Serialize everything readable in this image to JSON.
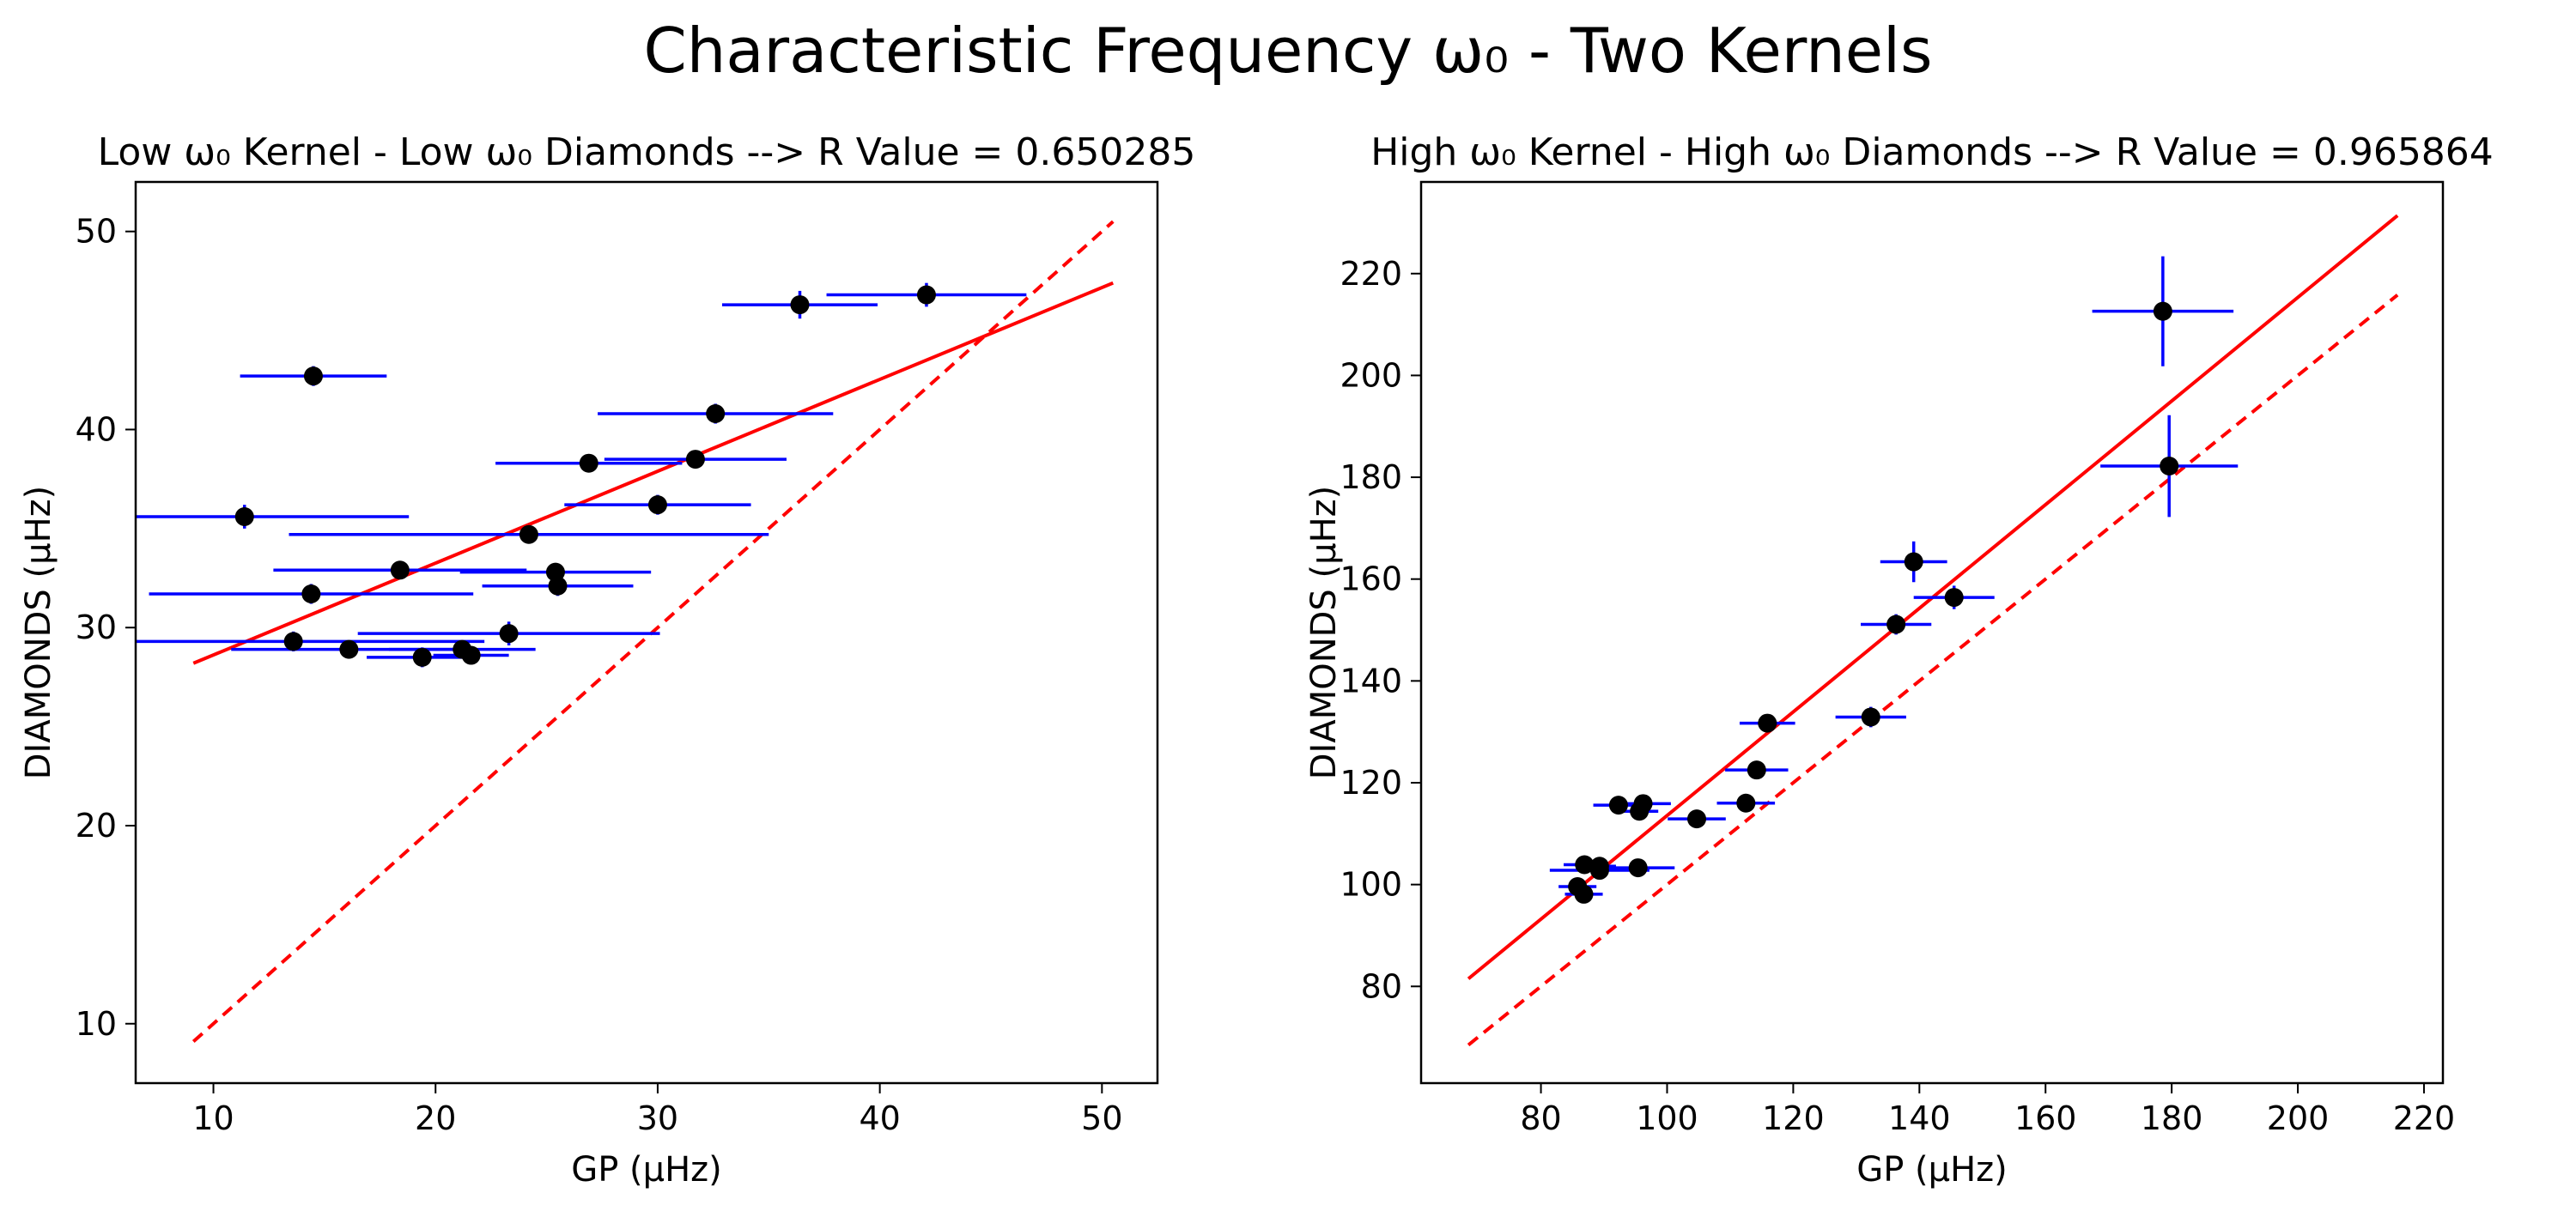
{
  "figure": {
    "suptitle": "Characteristic Frequency ω₀ - Two Kernels"
  },
  "chart_data": [
    {
      "type": "scatter",
      "title": "Low ω₀ Kernel - Low ω₀ Diamonds --> R Value = 0.650285",
      "xlabel": "GP (μHz)",
      "ylabel": "DIAMONDS (μHz)",
      "xlim": [
        6.5,
        52.5
      ],
      "ylim": [
        7,
        52.5
      ],
      "xticks": [
        10,
        20,
        30,
        40,
        50
      ],
      "yticks": [
        10,
        20,
        30,
        40,
        50
      ],
      "grid": false,
      "colors": {
        "points": "#000000",
        "errorbars": "#0000ff",
        "fit": "#ff0000",
        "identity": "#ff0000"
      },
      "points": [
        {
          "x": 11.4,
          "y": 35.6,
          "xerr": 7.4,
          "yerr": 0.6
        },
        {
          "x": 14.5,
          "y": 42.7,
          "xerr": 3.3,
          "yerr": 0.5
        },
        {
          "x": 13.6,
          "y": 29.3,
          "xerr": 8.6,
          "yerr": 0.5
        },
        {
          "x": 14.4,
          "y": 31.7,
          "xerr": 7.3,
          "yerr": 0.5
        },
        {
          "x": 16.1,
          "y": 28.9,
          "xerr": 5.3,
          "yerr": 0.3
        },
        {
          "x": 18.4,
          "y": 32.9,
          "xerr": 5.7,
          "yerr": 0.4
        },
        {
          "x": 19.4,
          "y": 28.5,
          "xerr": 2.5,
          "yerr": 0.5
        },
        {
          "x": 21.2,
          "y": 28.9,
          "xerr": 3.3,
          "yerr": 0.4
        },
        {
          "x": 21.6,
          "y": 28.6,
          "xerr": 1.7,
          "yerr": 0.4
        },
        {
          "x": 23.3,
          "y": 29.7,
          "xerr": 6.8,
          "yerr": 0.6
        },
        {
          "x": 24.2,
          "y": 34.7,
          "xerr": 10.8,
          "yerr": 0.4
        },
        {
          "x": 25.4,
          "y": 32.8,
          "xerr": 4.3,
          "yerr": 0.4
        },
        {
          "x": 25.5,
          "y": 32.1,
          "xerr": 3.4,
          "yerr": 0.5
        },
        {
          "x": 26.9,
          "y": 38.3,
          "xerr": 4.2,
          "yerr": 0.4
        },
        {
          "x": 30.0,
          "y": 36.2,
          "xerr": 4.2,
          "yerr": 0.5
        },
        {
          "x": 31.7,
          "y": 38.5,
          "xerr": 4.1,
          "yerr": 0.4
        },
        {
          "x": 32.6,
          "y": 40.8,
          "xerr": 5.3,
          "yerr": 0.5
        },
        {
          "x": 36.4,
          "y": 46.3,
          "xerr": 3.5,
          "yerr": 0.7
        },
        {
          "x": 42.1,
          "y": 46.8,
          "xerr": 4.5,
          "yerr": 0.6
        }
      ],
      "lines": [
        {
          "style": "solid",
          "x": [
            9.1,
            50.5
          ],
          "y": [
            28.2,
            47.4
          ]
        },
        {
          "style": "dashed",
          "x": [
            9.1,
            50.5
          ],
          "y": [
            9.1,
            50.5
          ]
        }
      ]
    },
    {
      "type": "scatter",
      "title": "High ω₀ Kernel - High ω₀ Diamonds --> R Value = 0.965864",
      "xlabel": "GP (μHz)",
      "ylabel": "DIAMONDS (μHz)",
      "xlim": [
        61,
        223
      ],
      "ylim": [
        61,
        238
      ],
      "xticks": [
        80,
        100,
        120,
        140,
        160,
        180,
        200,
        220
      ],
      "yticks": [
        80,
        100,
        120,
        140,
        160,
        180,
        200,
        220
      ],
      "grid": false,
      "colors": {
        "points": "#000000",
        "errorbars": "#0000ff",
        "fit": "#ff0000",
        "identity": "#ff0000"
      },
      "points": [
        {
          "x": 85.8,
          "y": 99.6,
          "xerr": 3.0,
          "yerr": 1.2
        },
        {
          "x": 86.8,
          "y": 98.1,
          "xerr": 3.0,
          "yerr": 1.2
        },
        {
          "x": 86.9,
          "y": 103.9,
          "xerr": 3.3,
          "yerr": 1.2
        },
        {
          "x": 89.3,
          "y": 102.8,
          "xerr": 7.9,
          "yerr": 1.2
        },
        {
          "x": 89.3,
          "y": 103.6,
          "xerr": 2.6,
          "yerr": 1.2
        },
        {
          "x": 92.3,
          "y": 115.6,
          "xerr": 4.0,
          "yerr": 1.2
        },
        {
          "x": 95.4,
          "y": 103.3,
          "xerr": 5.8,
          "yerr": 1.2
        },
        {
          "x": 95.6,
          "y": 114.4,
          "xerr": 3.0,
          "yerr": 1.2
        },
        {
          "x": 96.2,
          "y": 115.9,
          "xerr": 4.4,
          "yerr": 1.2
        },
        {
          "x": 104.7,
          "y": 112.9,
          "xerr": 4.6,
          "yerr": 1.2
        },
        {
          "x": 112.5,
          "y": 116.0,
          "xerr": 4.6,
          "yerr": 1.2
        },
        {
          "x": 114.2,
          "y": 122.5,
          "xerr": 5.0,
          "yerr": 1.5
        },
        {
          "x": 115.9,
          "y": 131.7,
          "xerr": 4.4,
          "yerr": 1.5
        },
        {
          "x": 132.3,
          "y": 132.9,
          "xerr": 5.6,
          "yerr": 2.0
        },
        {
          "x": 136.3,
          "y": 151.1,
          "xerr": 5.6,
          "yerr": 2.0
        },
        {
          "x": 139.1,
          "y": 163.4,
          "xerr": 5.3,
          "yerr": 4.0
        },
        {
          "x": 145.5,
          "y": 156.4,
          "xerr": 6.4,
          "yerr": 2.3
        },
        {
          "x": 178.6,
          "y": 212.6,
          "xerr": 11.2,
          "yerr": 10.8
        },
        {
          "x": 179.6,
          "y": 182.2,
          "xerr": 10.9,
          "yerr": 10.0
        }
      ],
      "lines": [
        {
          "style": "solid",
          "x": [
            68.5,
            215.8
          ],
          "y": [
            81.5,
            231.4
          ]
        },
        {
          "style": "dashed",
          "x": [
            68.5,
            215.8
          ],
          "y": [
            68.5,
            215.8
          ]
        }
      ]
    }
  ]
}
